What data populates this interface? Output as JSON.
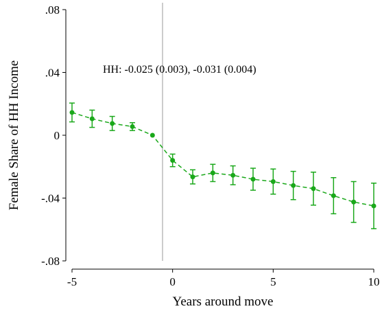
{
  "chart_data": {
    "type": "line",
    "xlabel": "Years around move",
    "ylabel": "Female Share of HH Income",
    "xlim": [
      -5,
      10
    ],
    "ylim": [
      -0.08,
      0.08
    ],
    "x_ticks": [
      -5,
      0,
      5,
      10
    ],
    "x_tick_labels": [
      "-5",
      "0",
      "5",
      "10"
    ],
    "y_ticks": [
      -0.08,
      -0.04,
      0,
      0.04,
      0.08
    ],
    "y_tick_labels": [
      "-.08",
      "-.04",
      "0",
      ".04",
      ".08"
    ],
    "reference_line_x": -0.5,
    "annotation": "HH: -0.025 (0.003), -0.031 (0.004)",
    "grid": false,
    "color": "#1aa81a",
    "series": [
      {
        "x": [
          -5,
          -4,
          -3,
          -2,
          -1,
          0,
          1,
          2,
          3,
          4,
          5,
          6,
          7,
          8,
          9,
          10
        ],
        "values": [
          0.0145,
          0.0105,
          0.0075,
          0.0055,
          0.0,
          -0.016,
          -0.0265,
          -0.024,
          -0.0255,
          -0.028,
          -0.0295,
          -0.032,
          -0.034,
          -0.0385,
          -0.0425,
          -0.045
        ],
        "ci_low": [
          0.0085,
          0.005,
          0.003,
          0.003,
          0.0,
          -0.02,
          -0.031,
          -0.0295,
          -0.0315,
          -0.035,
          -0.0375,
          -0.041,
          -0.0445,
          -0.05,
          -0.0555,
          -0.0595
        ],
        "ci_high": [
          0.0205,
          0.016,
          0.012,
          0.008,
          0.0,
          -0.012,
          -0.022,
          -0.0185,
          -0.0195,
          -0.021,
          -0.0215,
          -0.023,
          -0.0235,
          -0.027,
          -0.0295,
          -0.0305
        ]
      }
    ]
  }
}
